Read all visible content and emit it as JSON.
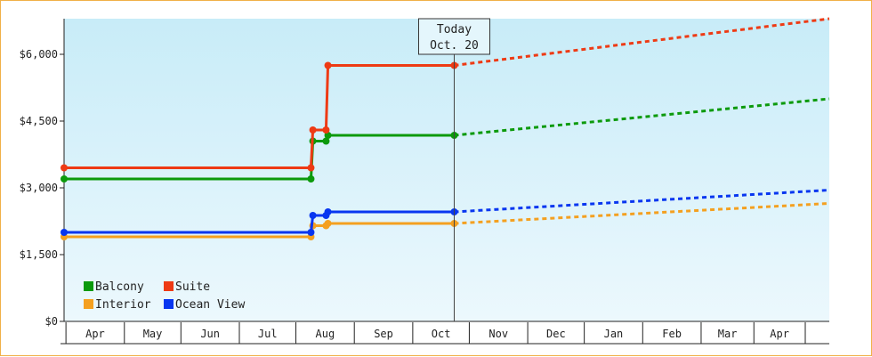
{
  "chart_data": {
    "type": "line",
    "step": true,
    "title": "",
    "xlabel": "",
    "ylabel": "",
    "ylim": [
      0,
      6800
    ],
    "y_ticks": [
      0,
      1500,
      3000,
      4500,
      6000
    ],
    "y_tick_labels": [
      "$0",
      "$1,500",
      "$3,000",
      "$4,500",
      "$6,000"
    ],
    "x_range": [
      "2021-03-27",
      "2022-05-07"
    ],
    "months": [
      {
        "label": "Apr",
        "start": "2021-03-28"
      },
      {
        "label": "May",
        "start": "2021-04-28"
      },
      {
        "label": "Jun",
        "start": "2021-05-28"
      },
      {
        "label": "Jul",
        "start": "2021-06-28"
      },
      {
        "label": "Aug",
        "start": "2021-07-28"
      },
      {
        "label": "Sep",
        "start": "2021-08-28"
      },
      {
        "label": "Oct",
        "start": "2021-09-28"
      },
      {
        "label": "Nov",
        "start": "2021-10-28"
      },
      {
        "label": "Dec",
        "start": "2021-11-28"
      },
      {
        "label": "Jan",
        "start": "2021-12-28"
      },
      {
        "label": "Feb",
        "start": "2022-01-28"
      },
      {
        "label": "Mar",
        "start": "2022-02-28"
      },
      {
        "label": "Apr",
        "start": "2022-03-28"
      }
    ],
    "today": {
      "line1": "Today",
      "line2": "Oct. 20",
      "date": "2021-10-20"
    },
    "grid": false,
    "legend": {
      "position": "bottom-left",
      "columns": 2
    },
    "series": [
      {
        "name": "Balcony",
        "color": "#0c9a0c",
        "points": [
          [
            "2021-03-27",
            3200
          ],
          [
            "2021-08-05",
            3200
          ],
          [
            "2021-08-06",
            4050
          ],
          [
            "2021-08-13",
            4050
          ],
          [
            "2021-08-14",
            4180
          ],
          [
            "2021-10-20",
            4180
          ]
        ],
        "forecast": [
          [
            "2021-10-20",
            4180
          ],
          [
            "2022-05-07",
            5000
          ]
        ]
      },
      {
        "name": "Suite",
        "color": "#ee3a14",
        "points": [
          [
            "2021-03-27",
            3450
          ],
          [
            "2021-08-05",
            3450
          ],
          [
            "2021-08-06",
            4300
          ],
          [
            "2021-08-13",
            4300
          ],
          [
            "2021-08-14",
            5750
          ],
          [
            "2021-10-20",
            5750
          ]
        ],
        "forecast": [
          [
            "2021-10-20",
            5750
          ],
          [
            "2022-05-07",
            6800
          ]
        ]
      },
      {
        "name": "Interior",
        "color": "#f4a020",
        "points": [
          [
            "2021-03-27",
            1900
          ],
          [
            "2021-08-05",
            1900
          ],
          [
            "2021-08-06",
            2150
          ],
          [
            "2021-08-13",
            2150
          ],
          [
            "2021-08-14",
            2200
          ],
          [
            "2021-10-20",
            2200
          ]
        ],
        "forecast": [
          [
            "2021-10-20",
            2200
          ],
          [
            "2022-05-07",
            2650
          ]
        ]
      },
      {
        "name": "Ocean View",
        "color": "#0836f0",
        "points": [
          [
            "2021-03-27",
            2000
          ],
          [
            "2021-08-05",
            2000
          ],
          [
            "2021-08-06",
            2380
          ],
          [
            "2021-08-13",
            2380
          ],
          [
            "2021-08-14",
            2460
          ],
          [
            "2021-10-20",
            2460
          ]
        ],
        "forecast": [
          [
            "2021-10-20",
            2460
          ],
          [
            "2022-05-07",
            2950
          ]
        ]
      }
    ]
  }
}
